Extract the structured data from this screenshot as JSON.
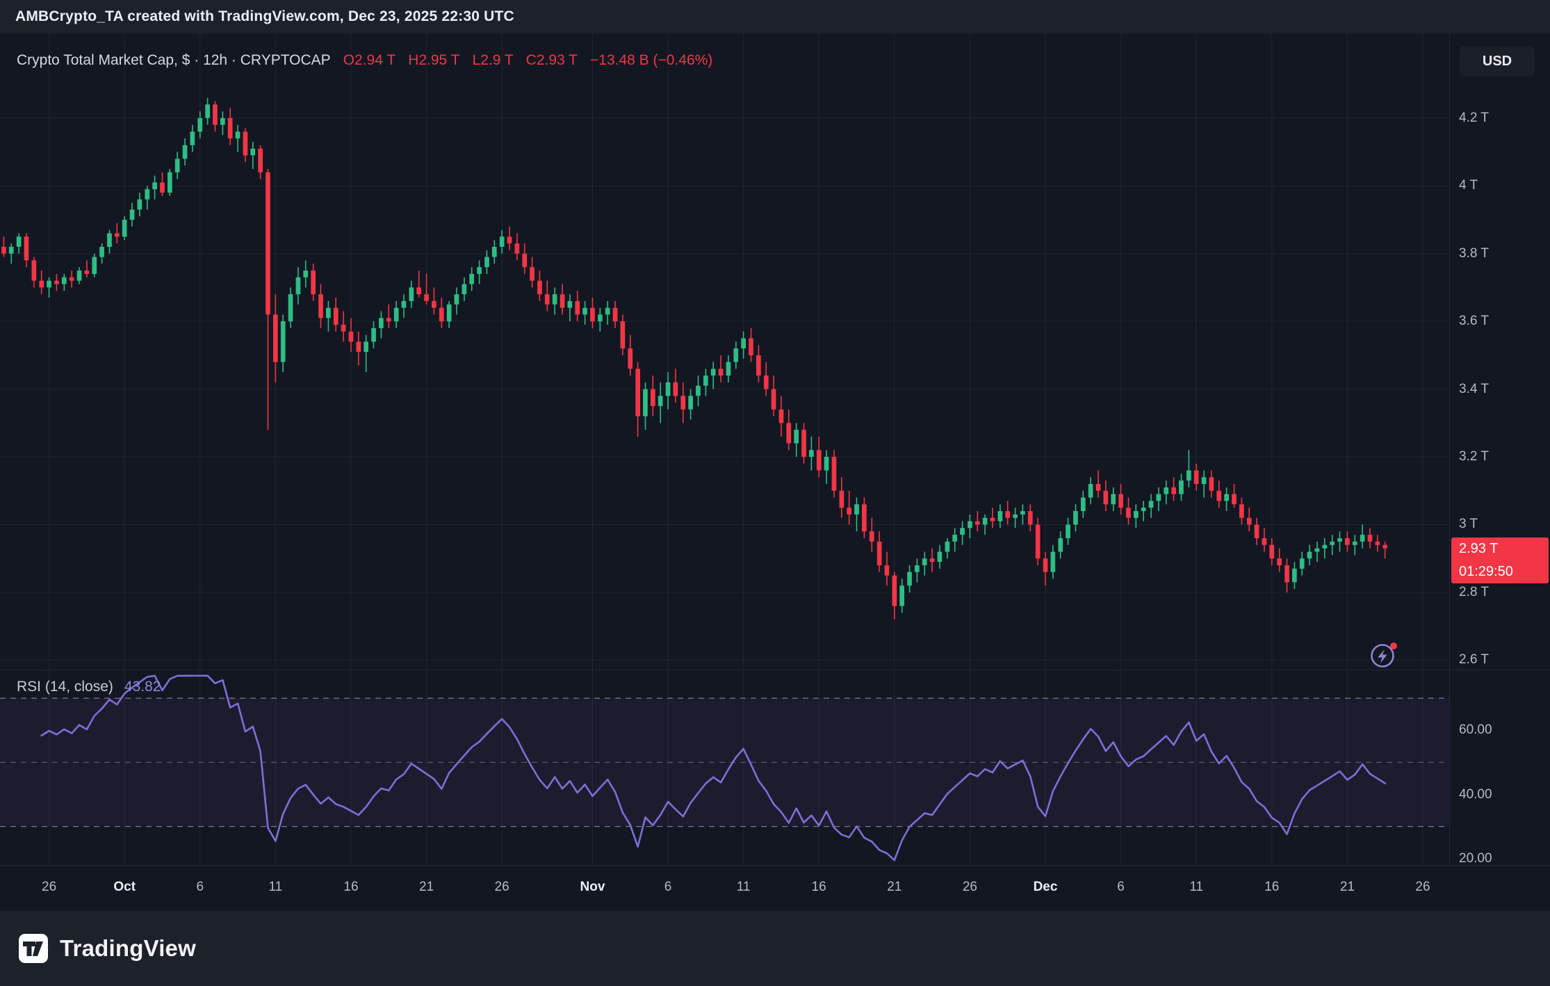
{
  "header": {
    "attribution": "AMBCrypto_TA created with TradingView.com, Dec 23, 2025 22:30 UTC"
  },
  "toolbar": {
    "currency_button": "USD"
  },
  "legend": {
    "title": "Crypto Total Market Cap, $ · 12h · CRYPTOCAP",
    "open": "O2.94 T",
    "high": "H2.95 T",
    "low": "L2.9 T",
    "close": "C2.93 T",
    "change": "−13.48 B (−0.46%)"
  },
  "price_axis": {
    "ticks": [
      {
        "label": "4.2 T",
        "value": 4.2
      },
      {
        "label": "4 T",
        "value": 4.0
      },
      {
        "label": "3.8 T",
        "value": 3.8
      },
      {
        "label": "3.6 T",
        "value": 3.6
      },
      {
        "label": "3.4 T",
        "value": 3.4
      },
      {
        "label": "3.2 T",
        "value": 3.2
      },
      {
        "label": "3 T",
        "value": 3.0
      },
      {
        "label": "2.8 T",
        "value": 2.8
      },
      {
        "label": "2.6 T",
        "value": 2.6
      }
    ],
    "badge": {
      "price": "2.93 T",
      "countdown": "01:29:50",
      "value": 2.93,
      "color": "#f23645"
    }
  },
  "rsi_header": {
    "label": "RSI (14, close)",
    "value": "43.82"
  },
  "time_axis": {
    "ticks": [
      {
        "label": "26",
        "day": 3,
        "major": false
      },
      {
        "label": "Oct",
        "day": 8,
        "major": true
      },
      {
        "label": "6",
        "day": 13,
        "major": false
      },
      {
        "label": "11",
        "day": 18,
        "major": false
      },
      {
        "label": "16",
        "day": 23,
        "major": false
      },
      {
        "label": "21",
        "day": 28,
        "major": false
      },
      {
        "label": "26",
        "day": 33,
        "major": false
      },
      {
        "label": "Nov",
        "day": 39,
        "major": true
      },
      {
        "label": "6",
        "day": 44,
        "major": false
      },
      {
        "label": "11",
        "day": 49,
        "major": false
      },
      {
        "label": "16",
        "day": 54,
        "major": false
      },
      {
        "label": "21",
        "day": 59,
        "major": false
      },
      {
        "label": "26",
        "day": 64,
        "major": false
      },
      {
        "label": "Dec",
        "day": 69,
        "major": true
      },
      {
        "label": "6",
        "day": 74,
        "major": false
      },
      {
        "label": "11",
        "day": 79,
        "major": false
      },
      {
        "label": "16",
        "day": 84,
        "major": false
      },
      {
        "label": "21",
        "day": 89,
        "major": false
      },
      {
        "label": "26",
        "day": 94,
        "major": false
      }
    ]
  },
  "footer": {
    "brand": "TradingView"
  },
  "chart_data": {
    "type": "candlestick",
    "title": "Crypto Total Market Cap, $ (CRYPTOCAP), 12h bars",
    "symbol": "CRYPTOCAP",
    "interval": "12h",
    "unit": "trillion USD",
    "start_date": "2025-09-23",
    "last_bar": {
      "open": 2.94,
      "high": 2.95,
      "low": 2.9,
      "close": 2.93,
      "change_abs": "−13.48 B",
      "change_pct": "−0.46%"
    },
    "price_ylim": [
      2.57,
      4.45
    ],
    "y_ticks": [
      4.2,
      4.0,
      3.8,
      3.6,
      3.4,
      3.2,
      3.0,
      2.8,
      2.6
    ],
    "total_slots": 192,
    "up_color": "#2ebd85",
    "down_color": "#f23645",
    "candles": [
      [
        3.82,
        3.85,
        3.79,
        3.8
      ],
      [
        3.8,
        3.83,
        3.77,
        3.82
      ],
      [
        3.82,
        3.86,
        3.8,
        3.85
      ],
      [
        3.85,
        3.86,
        3.76,
        3.78
      ],
      [
        3.78,
        3.79,
        3.7,
        3.72
      ],
      [
        3.72,
        3.75,
        3.68,
        3.7
      ],
      [
        3.7,
        3.73,
        3.67,
        3.72
      ],
      [
        3.72,
        3.74,
        3.69,
        3.71
      ],
      [
        3.71,
        3.74,
        3.69,
        3.73
      ],
      [
        3.73,
        3.75,
        3.7,
        3.72
      ],
      [
        3.72,
        3.76,
        3.71,
        3.75
      ],
      [
        3.75,
        3.78,
        3.73,
        3.74
      ],
      [
        3.74,
        3.8,
        3.73,
        3.79
      ],
      [
        3.79,
        3.83,
        3.77,
        3.82
      ],
      [
        3.82,
        3.87,
        3.8,
        3.86
      ],
      [
        3.86,
        3.89,
        3.83,
        3.85
      ],
      [
        3.85,
        3.91,
        3.84,
        3.9
      ],
      [
        3.9,
        3.95,
        3.88,
        3.93
      ],
      [
        3.93,
        3.98,
        3.91,
        3.96
      ],
      [
        3.96,
        4.0,
        3.93,
        3.99
      ],
      [
        3.99,
        4.03,
        3.96,
        4.01
      ],
      [
        4.01,
        4.04,
        3.97,
        3.98
      ],
      [
        3.98,
        4.05,
        3.97,
        4.04
      ],
      [
        4.04,
        4.1,
        4.02,
        4.08
      ],
      [
        4.08,
        4.14,
        4.06,
        4.12
      ],
      [
        4.12,
        4.18,
        4.1,
        4.16
      ],
      [
        4.16,
        4.22,
        4.14,
        4.2
      ],
      [
        4.2,
        4.26,
        4.18,
        4.24
      ],
      [
        4.24,
        4.25,
        4.16,
        4.18
      ],
      [
        4.18,
        4.22,
        4.15,
        4.2
      ],
      [
        4.2,
        4.23,
        4.12,
        4.14
      ],
      [
        4.14,
        4.18,
        4.1,
        4.16
      ],
      [
        4.16,
        4.17,
        4.07,
        4.09
      ],
      [
        4.09,
        4.13,
        4.05,
        4.11
      ],
      [
        4.11,
        4.12,
        4.02,
        4.04
      ],
      [
        4.04,
        4.05,
        3.28,
        3.62
      ],
      [
        3.62,
        3.68,
        3.42,
        3.48
      ],
      [
        3.48,
        3.62,
        3.45,
        3.6
      ],
      [
        3.6,
        3.7,
        3.58,
        3.68
      ],
      [
        3.68,
        3.76,
        3.65,
        3.73
      ],
      [
        3.73,
        3.78,
        3.7,
        3.75
      ],
      [
        3.75,
        3.77,
        3.66,
        3.68
      ],
      [
        3.68,
        3.71,
        3.58,
        3.61
      ],
      [
        3.61,
        3.66,
        3.57,
        3.64
      ],
      [
        3.64,
        3.67,
        3.57,
        3.59
      ],
      [
        3.59,
        3.63,
        3.54,
        3.57
      ],
      [
        3.57,
        3.61,
        3.51,
        3.54
      ],
      [
        3.54,
        3.57,
        3.47,
        3.51
      ],
      [
        3.51,
        3.56,
        3.45,
        3.54
      ],
      [
        3.54,
        3.6,
        3.52,
        3.58
      ],
      [
        3.58,
        3.63,
        3.55,
        3.61
      ],
      [
        3.61,
        3.65,
        3.58,
        3.6
      ],
      [
        3.6,
        3.66,
        3.58,
        3.64
      ],
      [
        3.64,
        3.68,
        3.61,
        3.66
      ],
      [
        3.66,
        3.72,
        3.64,
        3.7
      ],
      [
        3.7,
        3.75,
        3.67,
        3.68
      ],
      [
        3.68,
        3.74,
        3.65,
        3.66
      ],
      [
        3.66,
        3.7,
        3.62,
        3.64
      ],
      [
        3.64,
        3.67,
        3.58,
        3.6
      ],
      [
        3.6,
        3.66,
        3.58,
        3.65
      ],
      [
        3.65,
        3.7,
        3.62,
        3.68
      ],
      [
        3.68,
        3.73,
        3.66,
        3.71
      ],
      [
        3.71,
        3.76,
        3.69,
        3.74
      ],
      [
        3.74,
        3.78,
        3.71,
        3.76
      ],
      [
        3.76,
        3.81,
        3.74,
        3.79
      ],
      [
        3.79,
        3.84,
        3.77,
        3.82
      ],
      [
        3.82,
        3.87,
        3.8,
        3.85
      ],
      [
        3.85,
        3.88,
        3.81,
        3.83
      ],
      [
        3.83,
        3.86,
        3.78,
        3.8
      ],
      [
        3.8,
        3.83,
        3.74,
        3.76
      ],
      [
        3.76,
        3.79,
        3.7,
        3.72
      ],
      [
        3.72,
        3.75,
        3.66,
        3.68
      ],
      [
        3.68,
        3.72,
        3.63,
        3.65
      ],
      [
        3.65,
        3.7,
        3.62,
        3.68
      ],
      [
        3.68,
        3.71,
        3.62,
        3.64
      ],
      [
        3.64,
        3.68,
        3.6,
        3.66
      ],
      [
        3.66,
        3.69,
        3.6,
        3.62
      ],
      [
        3.62,
        3.66,
        3.59,
        3.64
      ],
      [
        3.64,
        3.67,
        3.58,
        3.6
      ],
      [
        3.6,
        3.64,
        3.57,
        3.62
      ],
      [
        3.62,
        3.66,
        3.59,
        3.64
      ],
      [
        3.64,
        3.66,
        3.58,
        3.6
      ],
      [
        3.6,
        3.62,
        3.5,
        3.52
      ],
      [
        3.52,
        3.56,
        3.44,
        3.46
      ],
      [
        3.46,
        3.48,
        3.26,
        3.32
      ],
      [
        3.32,
        3.42,
        3.28,
        3.4
      ],
      [
        3.4,
        3.44,
        3.32,
        3.35
      ],
      [
        3.35,
        3.42,
        3.3,
        3.38
      ],
      [
        3.38,
        3.45,
        3.34,
        3.42
      ],
      [
        3.42,
        3.46,
        3.36,
        3.38
      ],
      [
        3.38,
        3.42,
        3.3,
        3.34
      ],
      [
        3.34,
        3.4,
        3.31,
        3.38
      ],
      [
        3.38,
        3.44,
        3.35,
        3.41
      ],
      [
        3.41,
        3.46,
        3.38,
        3.44
      ],
      [
        3.44,
        3.48,
        3.4,
        3.46
      ],
      [
        3.46,
        3.5,
        3.42,
        3.44
      ],
      [
        3.44,
        3.5,
        3.42,
        3.48
      ],
      [
        3.48,
        3.54,
        3.46,
        3.52
      ],
      [
        3.52,
        3.57,
        3.49,
        3.55
      ],
      [
        3.55,
        3.58,
        3.48,
        3.5
      ],
      [
        3.5,
        3.53,
        3.42,
        3.44
      ],
      [
        3.44,
        3.48,
        3.38,
        3.4
      ],
      [
        3.4,
        3.44,
        3.32,
        3.34
      ],
      [
        3.34,
        3.38,
        3.26,
        3.3
      ],
      [
        3.3,
        3.34,
        3.22,
        3.24
      ],
      [
        3.24,
        3.3,
        3.2,
        3.28
      ],
      [
        3.28,
        3.3,
        3.18,
        3.2
      ],
      [
        3.2,
        3.26,
        3.16,
        3.22
      ],
      [
        3.22,
        3.26,
        3.14,
        3.16
      ],
      [
        3.16,
        3.22,
        3.12,
        3.2
      ],
      [
        3.2,
        3.22,
        3.08,
        3.1
      ],
      [
        3.1,
        3.14,
        3.02,
        3.05
      ],
      [
        3.05,
        3.1,
        3.0,
        3.03
      ],
      [
        3.03,
        3.08,
        2.98,
        3.06
      ],
      [
        3.06,
        3.08,
        2.96,
        2.98
      ],
      [
        2.98,
        3.02,
        2.92,
        2.95
      ],
      [
        2.95,
        2.98,
        2.86,
        2.88
      ],
      [
        2.88,
        2.92,
        2.82,
        2.85
      ],
      [
        2.85,
        2.86,
        2.72,
        2.76
      ],
      [
        2.76,
        2.84,
        2.74,
        2.82
      ],
      [
        2.82,
        2.88,
        2.8,
        2.86
      ],
      [
        2.86,
        2.9,
        2.83,
        2.88
      ],
      [
        2.88,
        2.92,
        2.85,
        2.9
      ],
      [
        2.9,
        2.93,
        2.86,
        2.89
      ],
      [
        2.89,
        2.94,
        2.87,
        2.92
      ],
      [
        2.92,
        2.96,
        2.9,
        2.95
      ],
      [
        2.95,
        2.99,
        2.92,
        2.97
      ],
      [
        2.97,
        3.01,
        2.94,
        2.99
      ],
      [
        2.99,
        3.03,
        2.96,
        3.01
      ],
      [
        3.01,
        3.04,
        2.98,
        3.0
      ],
      [
        3.0,
        3.03,
        2.97,
        3.02
      ],
      [
        3.02,
        3.05,
        2.99,
        3.01
      ],
      [
        3.01,
        3.06,
        2.99,
        3.04
      ],
      [
        3.04,
        3.07,
        3.0,
        3.02
      ],
      [
        3.02,
        3.05,
        2.99,
        3.03
      ],
      [
        3.03,
        3.06,
        3.0,
        3.04
      ],
      [
        3.04,
        3.06,
        2.98,
        3.0
      ],
      [
        3.0,
        3.02,
        2.88,
        2.9
      ],
      [
        2.9,
        2.92,
        2.82,
        2.86
      ],
      [
        2.86,
        2.94,
        2.84,
        2.92
      ],
      [
        2.92,
        2.98,
        2.9,
        2.96
      ],
      [
        2.96,
        3.02,
        2.94,
        3.0
      ],
      [
        3.0,
        3.06,
        2.98,
        3.04
      ],
      [
        3.04,
        3.1,
        3.02,
        3.08
      ],
      [
        3.08,
        3.14,
        3.06,
        3.12
      ],
      [
        3.12,
        3.16,
        3.08,
        3.1
      ],
      [
        3.1,
        3.13,
        3.04,
        3.06
      ],
      [
        3.06,
        3.11,
        3.04,
        3.09
      ],
      [
        3.09,
        3.12,
        3.03,
        3.05
      ],
      [
        3.05,
        3.08,
        3.0,
        3.02
      ],
      [
        3.02,
        3.06,
        2.99,
        3.04
      ],
      [
        3.04,
        3.07,
        3.01,
        3.05
      ],
      [
        3.05,
        3.09,
        3.02,
        3.07
      ],
      [
        3.07,
        3.11,
        3.04,
        3.09
      ],
      [
        3.09,
        3.13,
        3.06,
        3.11
      ],
      [
        3.11,
        3.14,
        3.07,
        3.09
      ],
      [
        3.09,
        3.15,
        3.07,
        3.13
      ],
      [
        3.13,
        3.22,
        3.11,
        3.16
      ],
      [
        3.16,
        3.18,
        3.1,
        3.12
      ],
      [
        3.12,
        3.16,
        3.08,
        3.14
      ],
      [
        3.14,
        3.16,
        3.08,
        3.1
      ],
      [
        3.1,
        3.13,
        3.05,
        3.07
      ],
      [
        3.07,
        3.11,
        3.04,
        3.09
      ],
      [
        3.09,
        3.12,
        3.05,
        3.06
      ],
      [
        3.06,
        3.08,
        3.0,
        3.02
      ],
      [
        3.02,
        3.05,
        2.98,
        3.0
      ],
      [
        3.0,
        3.02,
        2.94,
        2.96
      ],
      [
        2.96,
        2.99,
        2.92,
        2.94
      ],
      [
        2.94,
        2.96,
        2.88,
        2.9
      ],
      [
        2.9,
        2.93,
        2.86,
        2.88
      ],
      [
        2.88,
        2.9,
        2.8,
        2.83
      ],
      [
        2.83,
        2.89,
        2.81,
        2.87
      ],
      [
        2.87,
        2.92,
        2.85,
        2.9
      ],
      [
        2.9,
        2.94,
        2.88,
        2.92
      ],
      [
        2.92,
        2.95,
        2.89,
        2.93
      ],
      [
        2.93,
        2.96,
        2.9,
        2.94
      ],
      [
        2.94,
        2.97,
        2.91,
        2.95
      ],
      [
        2.95,
        2.98,
        2.92,
        2.96
      ],
      [
        2.96,
        2.98,
        2.92,
        2.94
      ],
      [
        2.94,
        2.97,
        2.91,
        2.95
      ],
      [
        2.95,
        3.0,
        2.93,
        2.97
      ],
      [
        2.97,
        2.99,
        2.93,
        2.95
      ],
      [
        2.95,
        2.97,
        2.92,
        2.94
      ],
      [
        2.94,
        2.95,
        2.9,
        2.93
      ]
    ],
    "rsi": {
      "period": 14,
      "source": "close",
      "current": 43.82,
      "upper": 70,
      "middle": 50,
      "lower": 30,
      "ylim": [
        18,
        78.7
      ],
      "axis_ticks": [
        {
          "label": "60.00",
          "value": 60
        },
        {
          "label": "40.00",
          "value": 40
        },
        {
          "label": "20.00",
          "value": 20
        }
      ],
      "line_color": "#7e6fd8",
      "band_color": "rgba(126,87,194,0.09)",
      "level_color": "#9094a3"
    }
  }
}
